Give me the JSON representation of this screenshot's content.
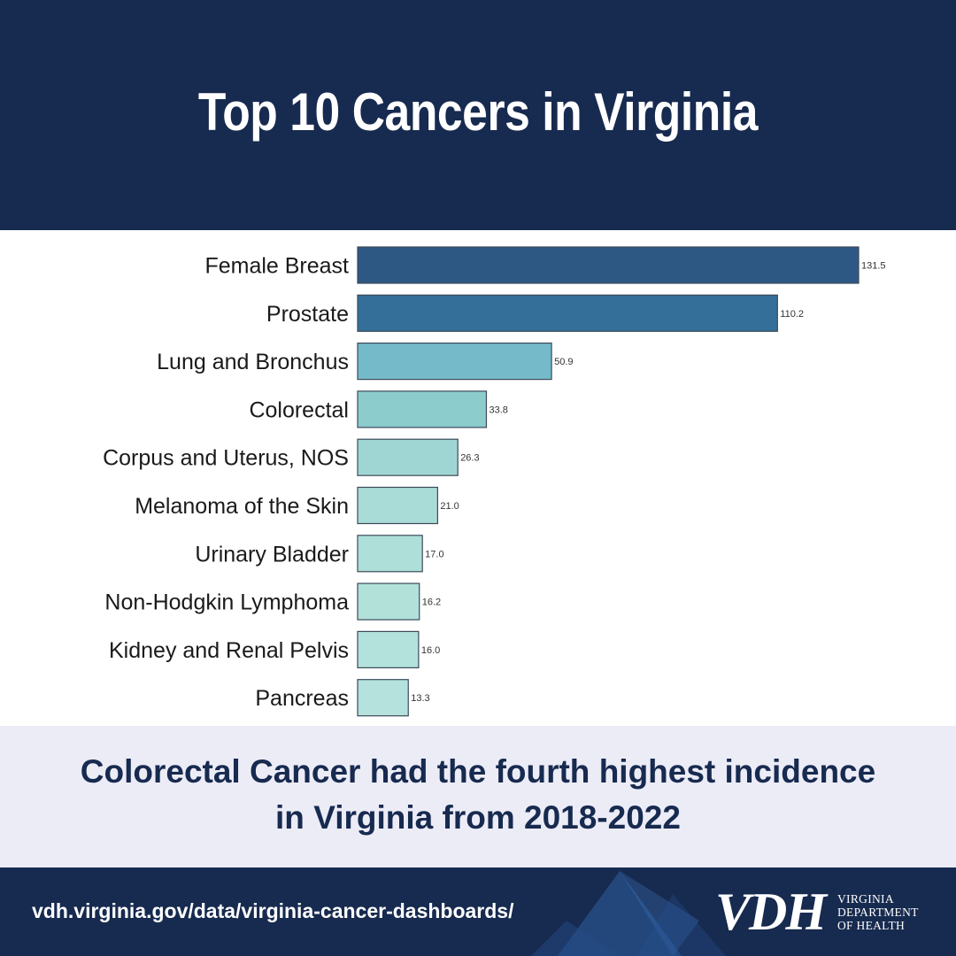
{
  "header": {
    "title": "Top 10 Cancers in Virginia"
  },
  "chart_data": {
    "type": "bar",
    "orientation": "horizontal",
    "categories": [
      "Female Breast",
      "Prostate",
      "Lung and Bronchus",
      "Colorectal",
      "Corpus and Uterus, NOS",
      "Melanoma of the Skin",
      "Urinary Bladder",
      "Non-Hodgkin Lymphoma",
      "Kidney and Renal Pelvis",
      "Pancreas"
    ],
    "values": [
      131.5,
      110.2,
      50.9,
      33.8,
      26.3,
      21.0,
      17.0,
      16.2,
      16.0,
      13.3
    ],
    "value_labels": [
      "131.5",
      "110.2",
      "50.9",
      "33.8",
      "26.3",
      "21.0",
      "17.0",
      "16.2",
      "16.0",
      "13.3"
    ],
    "colors": [
      "#2e5884",
      "#336f98",
      "#74bac8",
      "#8ccccd",
      "#9fd6d3",
      "#a9dcd7",
      "#afdfd9",
      "#b2e1da",
      "#b3e1db",
      "#b5e2dc"
    ],
    "xlim": [
      0,
      131.5
    ],
    "grid": false,
    "legend": "none"
  },
  "caption": {
    "line1": "Colorectal Cancer had the fourth highest incidence",
    "line2": "in Virginia from 2018-2022"
  },
  "footer": {
    "url": "vdh.virginia.gov/data/virginia-cancer-dashboards/",
    "logo_mark": "VDH",
    "logo_line1": "VIRGINIA",
    "logo_line2": "DEPARTMENT",
    "logo_line3": "OF HEALTH"
  },
  "colors": {
    "navy": "#172a4f",
    "caption_band": "#ececf7"
  }
}
